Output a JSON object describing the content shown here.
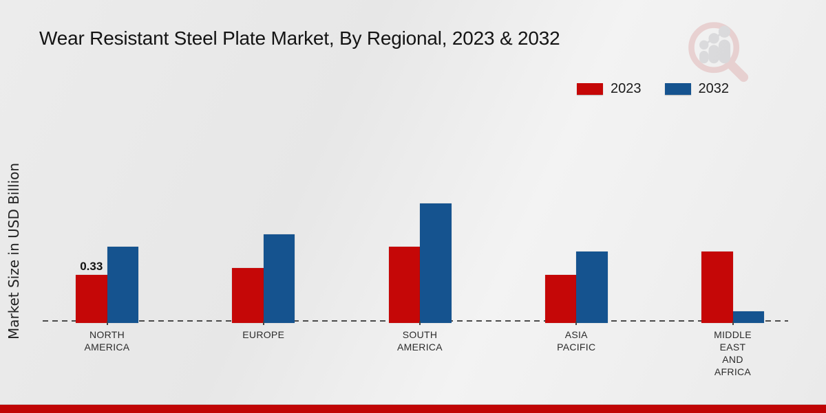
{
  "title": "Wear Resistant Steel Plate Market, By Regional, 2023 & 2032",
  "y_axis_label": "Market Size in USD Billion",
  "legend": [
    {
      "label": "2023",
      "color": "#c50707"
    },
    {
      "label": "2032",
      "color": "#15538f"
    }
  ],
  "footer_color": "#c00505",
  "chart_data": {
    "type": "bar",
    "title": "Wear Resistant Steel Plate Market, By Regional, 2023 & 2032",
    "xlabel": "",
    "ylabel": "Market Size in USD Billion",
    "ylim": [
      0,
      1.0
    ],
    "grid": false,
    "legend_position": "top-right",
    "baseline_style": "dashed",
    "y_ticks_visible": false,
    "categories": [
      "NORTH AMERICA",
      "EUROPE",
      "SOUTH AMERICA",
      "ASIA PACIFIC",
      "MIDDLE EAST AND AFRICA"
    ],
    "category_lines": [
      [
        "NORTH",
        "AMERICA"
      ],
      [
        "EUROPE"
      ],
      [
        "SOUTH",
        "AMERICA"
      ],
      [
        "ASIA",
        "PACIFIC"
      ],
      [
        "MIDDLE",
        "EAST",
        "AND",
        "AFRICA"
      ]
    ],
    "series": [
      {
        "name": "2023",
        "color": "#c50707",
        "values": [
          0.33,
          0.38,
          0.53,
          0.33,
          0.5
        ]
      },
      {
        "name": "2032",
        "color": "#15538f",
        "values": [
          0.53,
          0.62,
          0.84,
          0.5,
          0.07
        ]
      }
    ],
    "data_labels": [
      {
        "series": "2023",
        "category": "NORTH AMERICA",
        "value": "0.33"
      }
    ]
  }
}
